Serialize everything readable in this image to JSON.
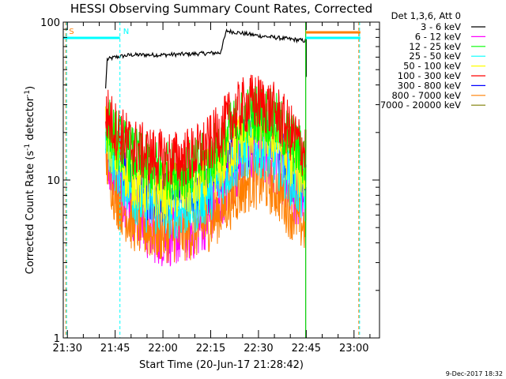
{
  "chart_data": {
    "type": "line",
    "title": "HESSI Observing Summary Count Rates, Corrected",
    "xlabel": "Start Time (20-Jun-17 21:28:42)",
    "ylabel": "Corrected Count Rate (s⁻¹ detector⁻¹)",
    "ylabel_parts": {
      "main": "Corrected Count Rate (s",
      "sup1": "-1",
      "mid": " detector",
      "sup2": "-1",
      "end": ")"
    },
    "y_scale": "log",
    "ylim": [
      1,
      100
    ],
    "y_ticks": [
      "1",
      "10",
      "100"
    ],
    "xlim": [
      "21:28:42",
      "23:08:00"
    ],
    "x_ticks": [
      "21:30",
      "21:45",
      "22:00",
      "22:15",
      "22:30",
      "22:45",
      "23:00"
    ],
    "legend_header": "Det 1,3,6, Att 0",
    "legend_position": "right, outside",
    "series": [
      {
        "name": "3 - 6 keV",
        "color": "#000000",
        "x": [
          "21:42",
          "21:42:30",
          "21:45",
          "21:50",
          "22:00",
          "22:10",
          "22:18",
          "22:20",
          "22:25",
          "22:30",
          "22:35",
          "22:40",
          "22:45"
        ],
        "values": [
          38,
          58,
          60,
          62,
          62,
          63,
          64,
          88,
          85,
          82,
          80,
          78,
          76
        ]
      },
      {
        "name": "6 - 12 keV",
        "color": "#ff00ff",
        "x": [
          "21:42",
          "21:45",
          "21:50",
          "21:55",
          "22:00",
          "22:05",
          "22:10",
          "22:15",
          "22:20",
          "22:25",
          "22:28",
          "22:32",
          "22:36",
          "22:40",
          "22:45"
        ],
        "values": [
          16,
          10.5,
          6.5,
          4.8,
          4.3,
          4.4,
          4.8,
          6,
          9,
          13,
          14.5,
          14,
          12,
          9,
          6.5
        ]
      },
      {
        "name": "12 - 25 keV",
        "color": "#00ff00",
        "x": [
          "21:42",
          "21:45",
          "21:50",
          "21:55",
          "22:00",
          "22:05",
          "22:10",
          "22:15",
          "22:20",
          "22:25",
          "22:28",
          "22:32",
          "22:36",
          "22:40",
          "22:45"
        ],
        "values": [
          24,
          18.5,
          14.5,
          12.5,
          11.5,
          11.5,
          12,
          14,
          19,
          25,
          27,
          26,
          23,
          18,
          13
        ]
      },
      {
        "name": "25 - 50 keV",
        "color": "#00ffff",
        "x": [
          "21:42",
          "21:45",
          "21:50",
          "21:55",
          "22:00",
          "22:05",
          "22:10",
          "22:15",
          "22:20",
          "22:25",
          "22:28",
          "22:32",
          "22:36",
          "22:40",
          "22:45"
        ],
        "values": [
          20,
          13,
          8.5,
          7,
          6.5,
          6.5,
          7,
          8.5,
          11.5,
          15,
          16,
          15.5,
          13.5,
          10.5,
          7.5
        ]
      },
      {
        "name": "50 - 100 keV",
        "color": "#ffff00",
        "x": [
          "21:42",
          "21:45",
          "21:50",
          "21:55",
          "22:00",
          "22:05",
          "22:10",
          "22:15",
          "22:20",
          "22:25",
          "22:28",
          "22:32",
          "22:36",
          "22:40",
          "22:45"
        ],
        "values": [
          22,
          15,
          10.5,
          9,
          8.5,
          8.5,
          9,
          10.5,
          14,
          19,
          21,
          20.5,
          18,
          14,
          10
        ]
      },
      {
        "name": "100 - 300 keV",
        "color": "#ff0000",
        "x": [
          "21:42",
          "21:45",
          "21:50",
          "21:55",
          "22:00",
          "22:05",
          "22:10",
          "22:15",
          "22:20",
          "22:25",
          "22:28",
          "22:32",
          "22:36",
          "22:40",
          "22:45"
        ],
        "values": [
          27,
          21,
          16.5,
          14.5,
          13.5,
          13.5,
          14.5,
          17,
          23,
          29,
          31,
          30,
          26,
          20,
          15
        ]
      },
      {
        "name": "300 - 800 keV",
        "color": "#0000ff",
        "x": [
          "21:42",
          "21:45",
          "21:50",
          "21:55",
          "22:00",
          "22:05",
          "22:10",
          "22:15",
          "22:20",
          "22:25",
          "22:28",
          "22:32",
          "22:36",
          "22:40",
          "22:45"
        ],
        "values": [
          19,
          12,
          9.2,
          8.2,
          7.8,
          7.8,
          8.2,
          9.5,
          12,
          15.5,
          17.5,
          17,
          15,
          11.5,
          8.5
        ]
      },
      {
        "name": "800 - 7000 keV",
        "color": "#ff7f00",
        "x": [
          "21:42",
          "21:45",
          "21:50",
          "21:55",
          "22:00",
          "22:05",
          "22:10",
          "22:15",
          "22:20",
          "22:25",
          "22:28",
          "22:32",
          "22:36",
          "22:40",
          "22:45"
        ],
        "values": [
          14,
          8,
          5.5,
          4.8,
          4.6,
          4.6,
          4.8,
          5.5,
          7,
          9,
          10,
          9.8,
          8.5,
          6.5,
          5
        ]
      },
      {
        "name": "7000 - 20000 keV",
        "color": "#7f7f00",
        "x": [],
        "values": []
      }
    ],
    "annotations": [
      {
        "label": "S",
        "time": "21:29:30",
        "color": "#ff7f00"
      },
      {
        "label": "N",
        "time": "21:46:30",
        "color": "#00ffff"
      }
    ],
    "timestamp": "9-Dec-2017 18:32"
  }
}
